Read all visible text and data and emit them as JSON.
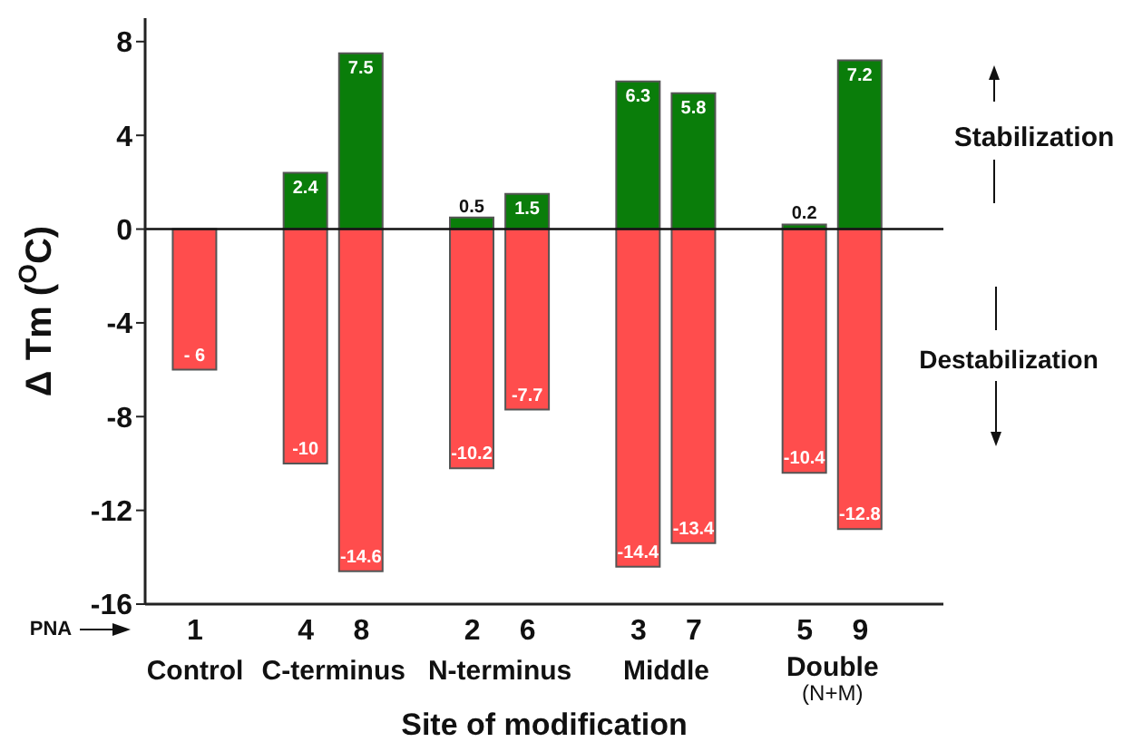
{
  "chart_data": {
    "type": "bar",
    "stacked": true,
    "xlabel": "Site of modification",
    "ylabel": "Δ Tm ($^{O}$C)",
    "categories": [
      "1",
      "4",
      "8",
      "2",
      "6",
      "3",
      "7",
      "5",
      "9"
    ],
    "series": [
      {
        "color": "#0a7d0a",
        "values": [
          null,
          2.4,
          7.5,
          0.5,
          1.5,
          6.3,
          5.8,
          0.2,
          7.2
        ],
        "value_labels": [
          null,
          "2.4",
          "7.5",
          "0.5",
          "1.5",
          "6.3",
          "5.8",
          "0.2",
          "7.2"
        ]
      },
      {
        "color": "#ff4d4d",
        "values": [
          -6,
          -10,
          -14.6,
          -10.2,
          -7.7,
          -14.4,
          -13.4,
          -10.4,
          -12.8
        ],
        "value_labels": [
          "- 6",
          "-10",
          "-14.6",
          "-10.2",
          "-7.7",
          "-14.4",
          "-13.4",
          "-10.4",
          "-12.8"
        ]
      }
    ],
    "ylim": [
      -16,
      9
    ],
    "yticks": [
      -16,
      -12,
      -8,
      -4,
      0,
      4,
      8
    ],
    "ref_lines": [
      {
        "axis": "y",
        "value": 0
      }
    ],
    "annotations": [
      "PNA",
      "Control",
      "C-terminus",
      "N-terminus",
      "Middle",
      "Double",
      "(N+M)",
      "Stabilization",
      "Destabilization"
    ]
  }
}
